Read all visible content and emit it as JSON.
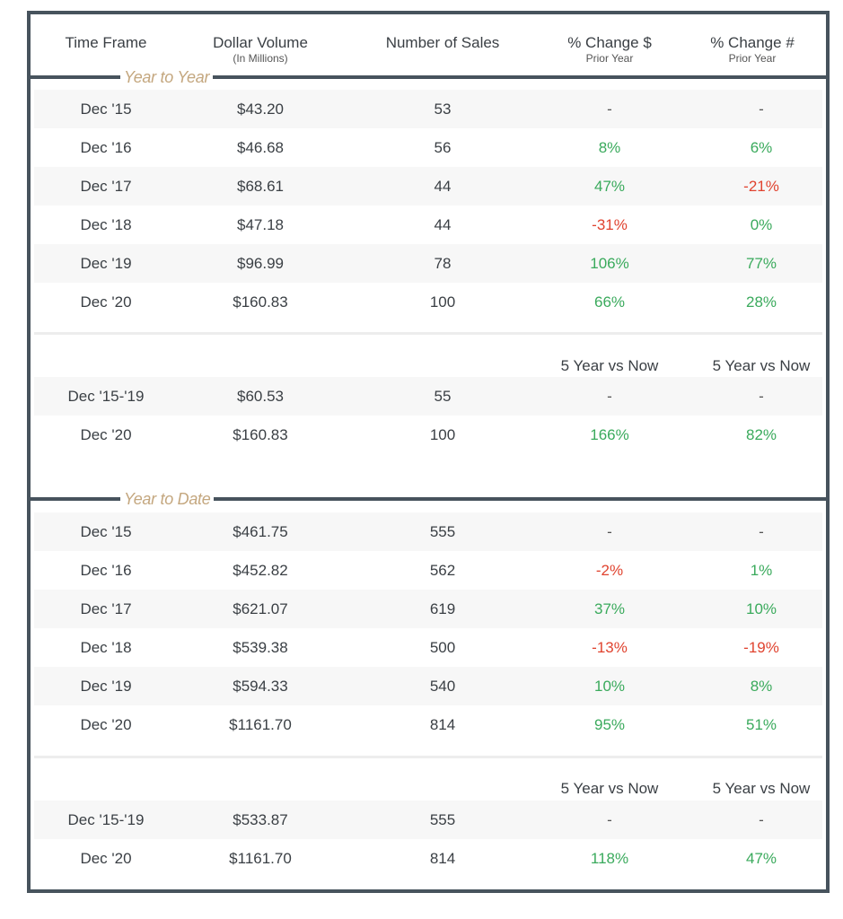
{
  "header": {
    "time_frame": "Time Frame",
    "dollar_volume": "Dollar Volume",
    "dollar_volume_sub": "(In Millions)",
    "number_of_sales": "Number of Sales",
    "pct_change_dollar": "% Change $",
    "pct_change_dollar_sub": "Prior Year",
    "pct_change_num": "% Change #",
    "pct_change_num_sub": "Prior Year"
  },
  "year_to_year": {
    "label": "Year to Year",
    "rows": [
      {
        "period": "Dec '15",
        "volume": "$43.20",
        "sales": "53",
        "chg_dollar": "-",
        "chg_num": "-"
      },
      {
        "period": "Dec '16",
        "volume": "$46.68",
        "sales": "56",
        "chg_dollar": "8%",
        "chg_num": "6%"
      },
      {
        "period": "Dec '17",
        "volume": "$68.61",
        "sales": "44",
        "chg_dollar": "47%",
        "chg_num": "-21%"
      },
      {
        "period": "Dec '18",
        "volume": "$47.18",
        "sales": "44",
        "chg_dollar": "-31%",
        "chg_num": "0%"
      },
      {
        "period": "Dec '19",
        "volume": "$96.99",
        "sales": "78",
        "chg_dollar": "106%",
        "chg_num": "77%"
      },
      {
        "period": "Dec '20",
        "volume": "$160.83",
        "sales": "100",
        "chg_dollar": "66%",
        "chg_num": "28%"
      }
    ],
    "vs_label_dollar": "5 Year vs Now",
    "vs_label_num": "5 Year vs Now",
    "summary": [
      {
        "period": "Dec '15-'19",
        "volume": "$60.53",
        "sales": "55",
        "chg_dollar": "-",
        "chg_num": "-"
      },
      {
        "period": "Dec '20",
        "volume": "$160.83",
        "sales": "100",
        "chg_dollar": "166%",
        "chg_num": "82%"
      }
    ]
  },
  "year_to_date": {
    "label": "Year to Date",
    "rows": [
      {
        "period": "Dec '15",
        "volume": "$461.75",
        "sales": "555",
        "chg_dollar": "-",
        "chg_num": "-"
      },
      {
        "period": "Dec '16",
        "volume": "$452.82",
        "sales": "562",
        "chg_dollar": "-2%",
        "chg_num": "1%"
      },
      {
        "period": "Dec '17",
        "volume": "$621.07",
        "sales": "619",
        "chg_dollar": "37%",
        "chg_num": "10%"
      },
      {
        "period": "Dec '18",
        "volume": "$539.38",
        "sales": "500",
        "chg_dollar": "-13%",
        "chg_num": "-19%"
      },
      {
        "period": "Dec '19",
        "volume": "$594.33",
        "sales": "540",
        "chg_dollar": "10%",
        "chg_num": "8%"
      },
      {
        "period": "Dec '20",
        "volume": "$1161.70",
        "sales": "814",
        "chg_dollar": "95%",
        "chg_num": "51%"
      }
    ],
    "vs_label_dollar": "5 Year vs Now",
    "vs_label_num": "5 Year vs Now",
    "summary": [
      {
        "period": "Dec '15-'19",
        "volume": "$533.87",
        "sales": "555",
        "chg_dollar": "-",
        "chg_num": "-"
      },
      {
        "period": "Dec '20",
        "volume": "$1161.70",
        "sales": "814",
        "chg_dollar": "118%",
        "chg_num": "47%"
      }
    ]
  },
  "colors": {
    "border": "#47535d",
    "section_label": "#c4a77f",
    "positive": "#3aaa5c",
    "negative": "#e0432f",
    "row_shade": "#f7f7f7"
  }
}
